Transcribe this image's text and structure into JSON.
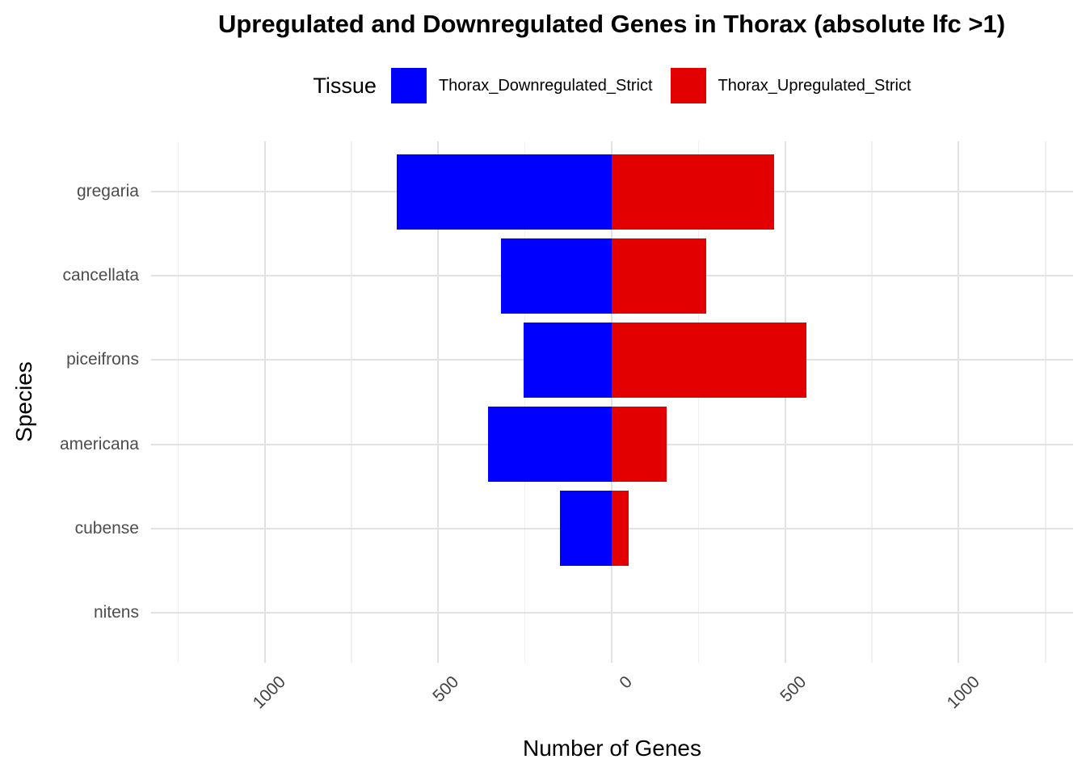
{
  "title": "Upregulated and Downregulated Genes in Thorax (absolute lfc >1)",
  "legend": {
    "title": "Tissue",
    "position": "top",
    "items": [
      {
        "label": "Thorax_Downregulated_Strict",
        "color": "#0000ff"
      },
      {
        "label": "Thorax_Upregulated_Strict",
        "color": "#e30000"
      }
    ]
  },
  "axes": {
    "x_title": "Number of Genes",
    "y_title": "Species",
    "x_tick_labels": [
      "1000",
      "500",
      "0",
      "500",
      "1000"
    ]
  },
  "chart_data": {
    "type": "bar",
    "orientation": "horizontal-diverging",
    "title": "Upregulated and Downregulated Genes in Thorax (absolute lfc >1)",
    "xlabel": "Number of Genes",
    "ylabel": "Species",
    "categories": [
      "gregaria",
      "cancellata",
      "piceifrons",
      "americana",
      "cubense",
      "nitens"
    ],
    "series": [
      {
        "name": "Thorax_Downregulated_Strict",
        "direction": "left",
        "color": "#0000ff",
        "values": [
          620,
          320,
          253,
          357,
          148,
          0
        ]
      },
      {
        "name": "Thorax_Upregulated_Strict",
        "direction": "right",
        "color": "#e30000",
        "values": [
          468,
          273,
          561,
          158,
          48,
          0
        ]
      }
    ],
    "x_major_ticks": [
      -1000,
      -500,
      0,
      500,
      1000
    ],
    "x_major_tick_labels": [
      "1000",
      "500",
      "0",
      "500",
      "1000"
    ],
    "x_minor_ticks": [
      -1250,
      -750,
      -250,
      250,
      750,
      1250
    ],
    "xlim": [
      -1325,
      1325
    ],
    "grid": true,
    "legend_position": "top",
    "bar_relative_width": 0.9
  },
  "colors": {
    "downregulated": "#0000ff",
    "upregulated": "#e30000",
    "grid_major": "#e2e2e2",
    "grid_minor": "#efefef",
    "axis_text": "#4d4d4d",
    "background": "#ffffff"
  }
}
